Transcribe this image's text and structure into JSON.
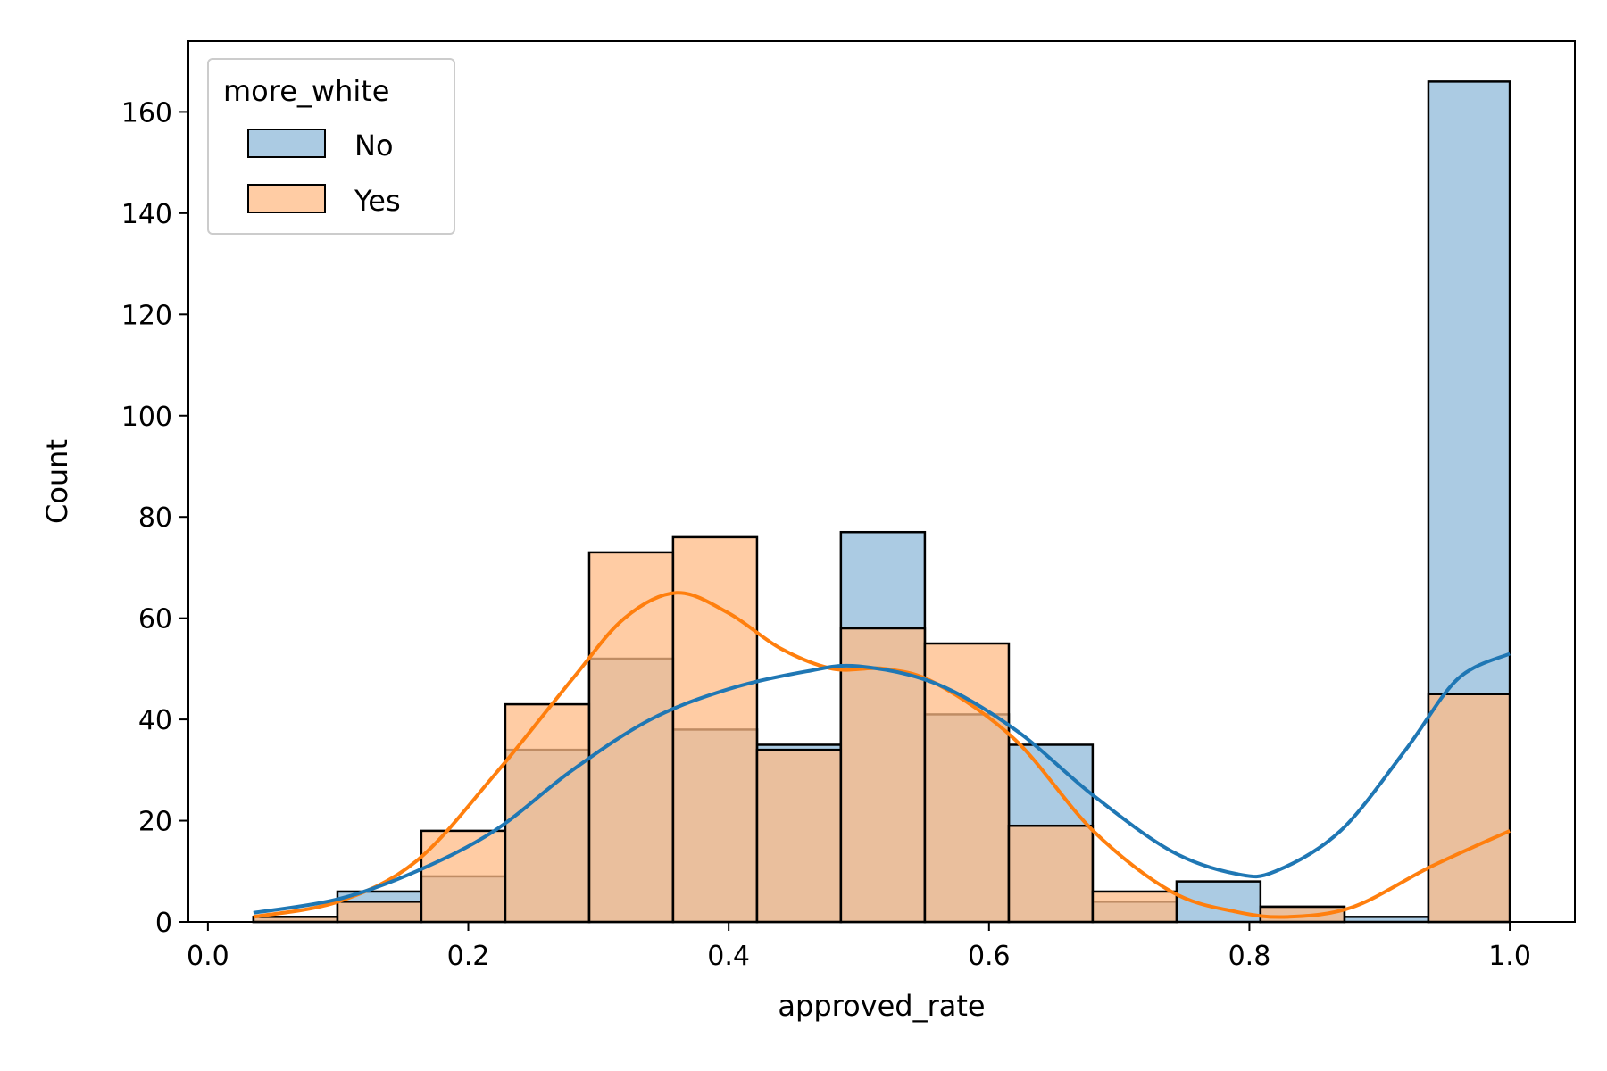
{
  "chart_data": {
    "type": "histogram",
    "xlabel": "approved_rate",
    "ylabel": "Count",
    "xlim": [
      -0.015,
      1.05
    ],
    "ylim": [
      0,
      174
    ],
    "x_ticks": [
      0.0,
      0.2,
      0.4,
      0.6,
      0.8,
      1.0
    ],
    "x_tick_labels": [
      "0.0",
      "0.2",
      "0.4",
      "0.6",
      "0.8",
      "1.0"
    ],
    "y_ticks": [
      0,
      20,
      40,
      60,
      80,
      100,
      120,
      140,
      160
    ],
    "y_tick_labels": [
      "0",
      "20",
      "40",
      "60",
      "80",
      "100",
      "120",
      "140",
      "160"
    ],
    "grid": false,
    "bin_edges": [
      0.035,
      0.0995,
      0.1639,
      0.2284,
      0.2929,
      0.3573,
      0.4218,
      0.4862,
      0.5507,
      0.6152,
      0.6796,
      0.7441,
      0.8085,
      0.873,
      0.9375,
      1.0
    ],
    "legend": {
      "title": "more_white",
      "position": "top-left"
    },
    "series": [
      {
        "name": "No",
        "color": "#1f77b4",
        "fill": "#8fb9d9",
        "counts": [
          1,
          6,
          9,
          34,
          52,
          38,
          35,
          77,
          41,
          35,
          4,
          8,
          3,
          1,
          166
        ],
        "kde": [
          [
            0.035,
            1.8
          ],
          [
            0.1,
            4.5
          ],
          [
            0.16,
            10
          ],
          [
            0.22,
            18
          ],
          [
            0.28,
            30
          ],
          [
            0.34,
            40
          ],
          [
            0.4,
            46
          ],
          [
            0.46,
            49.5
          ],
          [
            0.5,
            50.5
          ],
          [
            0.56,
            47
          ],
          [
            0.62,
            38
          ],
          [
            0.68,
            25
          ],
          [
            0.74,
            14
          ],
          [
            0.79,
            9.5
          ],
          [
            0.82,
            10
          ],
          [
            0.87,
            18
          ],
          [
            0.92,
            34
          ],
          [
            0.96,
            48
          ],
          [
            1.0,
            53
          ]
        ]
      },
      {
        "name": "Yes",
        "color": "#ff7f0e",
        "fill": "#ffbb85",
        "counts": [
          1,
          4,
          18,
          43,
          73,
          76,
          34,
          58,
          55,
          19,
          6,
          0,
          3,
          0,
          45
        ],
        "kde": [
          [
            0.035,
            1
          ],
          [
            0.1,
            4
          ],
          [
            0.16,
            12
          ],
          [
            0.22,
            29
          ],
          [
            0.28,
            48
          ],
          [
            0.32,
            60
          ],
          [
            0.36,
            65
          ],
          [
            0.4,
            61
          ],
          [
            0.44,
            54
          ],
          [
            0.48,
            50
          ],
          [
            0.52,
            50
          ],
          [
            0.56,
            47
          ],
          [
            0.62,
            36
          ],
          [
            0.68,
            18
          ],
          [
            0.74,
            6
          ],
          [
            0.79,
            2
          ],
          [
            0.83,
            1
          ],
          [
            0.88,
            3
          ],
          [
            0.94,
            11
          ],
          [
            1.0,
            18
          ]
        ]
      }
    ]
  }
}
